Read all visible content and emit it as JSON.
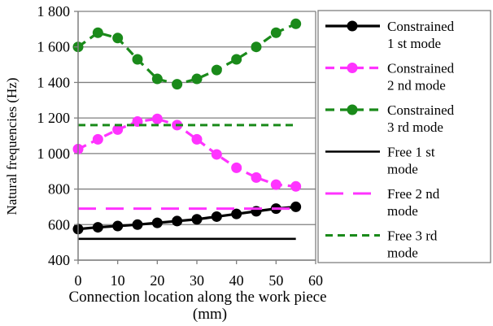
{
  "chart_data": {
    "type": "line",
    "title": "",
    "xlabel": "Connection location along the work piece (mm)",
    "ylabel": "Natural frequencies (Hz)",
    "xlim": [
      0,
      60
    ],
    "ylim": [
      400,
      1800
    ],
    "x_ticks": [
      0,
      10,
      20,
      30,
      40,
      50,
      60
    ],
    "y_ticks": [
      400,
      600,
      800,
      1000,
      1200,
      1400,
      1600,
      1800
    ],
    "y_tick_labels": [
      "400",
      "600",
      "800",
      "1 000",
      "1 200",
      "1 400",
      "1 600",
      "1 800"
    ],
    "grid": "horizontal",
    "legend_position": "right",
    "x": [
      0,
      5,
      10,
      15,
      20,
      25,
      30,
      35,
      40,
      45,
      50,
      55
    ],
    "series": [
      {
        "name": "Constrained 1 st mode",
        "legend_lines": [
          "Constrained",
          "1 st mode"
        ],
        "color": "#000000",
        "style": "solid-markers",
        "values": [
          575,
          585,
          592,
          600,
          610,
          620,
          630,
          645,
          660,
          675,
          690,
          700
        ]
      },
      {
        "name": "Constrained 2 nd mode",
        "legend_lines": [
          "Constrained",
          "2 nd mode"
        ],
        "color": "#ff33ff",
        "style": "dashed-markers",
        "values": [
          1025,
          1080,
          1135,
          1180,
          1195,
          1160,
          1080,
          995,
          920,
          865,
          825,
          815
        ]
      },
      {
        "name": "Constrained 3 rd mode",
        "legend_lines": [
          "Constrained",
          "3 rd mode"
        ],
        "color": "#1a8a1a",
        "style": "dashed-markers",
        "values": [
          1600,
          1680,
          1650,
          1530,
          1420,
          1390,
          1420,
          1470,
          1530,
          1600,
          1680,
          1730
        ]
      },
      {
        "name": "Free 1 st mode",
        "legend_lines": [
          "Free 1  st",
          "mode"
        ],
        "color": "#000000",
        "style": "solid",
        "values": [
          520,
          520,
          520,
          520,
          520,
          520,
          520,
          520,
          520,
          520,
          520,
          520
        ]
      },
      {
        "name": "Free 2 nd mode",
        "legend_lines": [
          "Free 2  nd",
          "mode"
        ],
        "color": "#ff33ff",
        "style": "long-dashed",
        "values": [
          690,
          690,
          690,
          690,
          690,
          690,
          690,
          690,
          690,
          690,
          690,
          690
        ]
      },
      {
        "name": "Free 3 rd mode",
        "legend_lines": [
          "Free 3  rd",
          "mode"
        ],
        "color": "#1a8a1a",
        "style": "dashed",
        "values": [
          1160,
          1160,
          1160,
          1160,
          1160,
          1160,
          1160,
          1160,
          1160,
          1160,
          1160,
          1160
        ]
      }
    ]
  }
}
